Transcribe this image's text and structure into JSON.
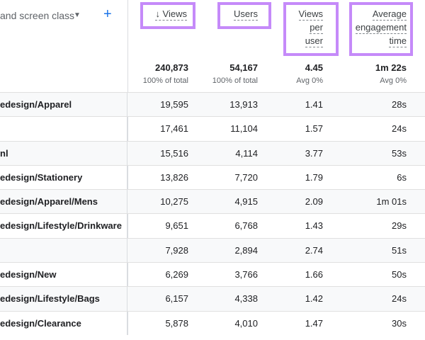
{
  "dimension": {
    "title": "and screen class",
    "caret": "▼",
    "add_label": "+"
  },
  "columns": [
    {
      "label_lines": [
        "↓ Views"
      ],
      "total": "240,873",
      "total_sub": "100% of total"
    },
    {
      "label_lines": [
        "Users"
      ],
      "total": "54,167",
      "total_sub": "100% of total"
    },
    {
      "label_lines": [
        "Views",
        "per",
        "user"
      ],
      "total": "4.45",
      "total_sub": "Avg 0%"
    },
    {
      "label_lines": [
        "Average",
        "engagement",
        "time"
      ],
      "total": "1m 22s",
      "total_sub": "Avg 0%"
    }
  ],
  "rows": [
    {
      "dim": "edesign/Apparel",
      "views": "19,595",
      "users": "13,913",
      "vpu": "1.41",
      "time": "28s"
    },
    {
      "dim": "",
      "views": "17,461",
      "users": "11,104",
      "vpu": "1.57",
      "time": "24s"
    },
    {
      "dim": "nl",
      "views": "15,516",
      "users": "4,114",
      "vpu": "3.77",
      "time": "53s"
    },
    {
      "dim": "edesign/Stationery",
      "views": "13,826",
      "users": "7,720",
      "vpu": "1.79",
      "time": "6s"
    },
    {
      "dim": "edesign/Apparel/Mens",
      "views": "10,275",
      "users": "4,915",
      "vpu": "2.09",
      "time": "1m 01s"
    },
    {
      "dim": "edesign/Lifestyle/Drinkware",
      "views": "9,651",
      "users": "6,768",
      "vpu": "1.43",
      "time": "29s"
    },
    {
      "dim": "",
      "views": "7,928",
      "users": "2,894",
      "vpu": "2.74",
      "time": "51s"
    },
    {
      "dim": "edesign/New",
      "views": "6,269",
      "users": "3,766",
      "vpu": "1.66",
      "time": "50s"
    },
    {
      "dim": "edesign/Lifestyle/Bags",
      "views": "6,157",
      "users": "4,338",
      "vpu": "1.42",
      "time": "24s"
    },
    {
      "dim": "edesign/Clearance",
      "views": "5,878",
      "users": "4,010",
      "vpu": "1.47",
      "time": "30s"
    }
  ],
  "colors": {
    "highlight": "#c58af9",
    "accent": "#1a73e8"
  }
}
